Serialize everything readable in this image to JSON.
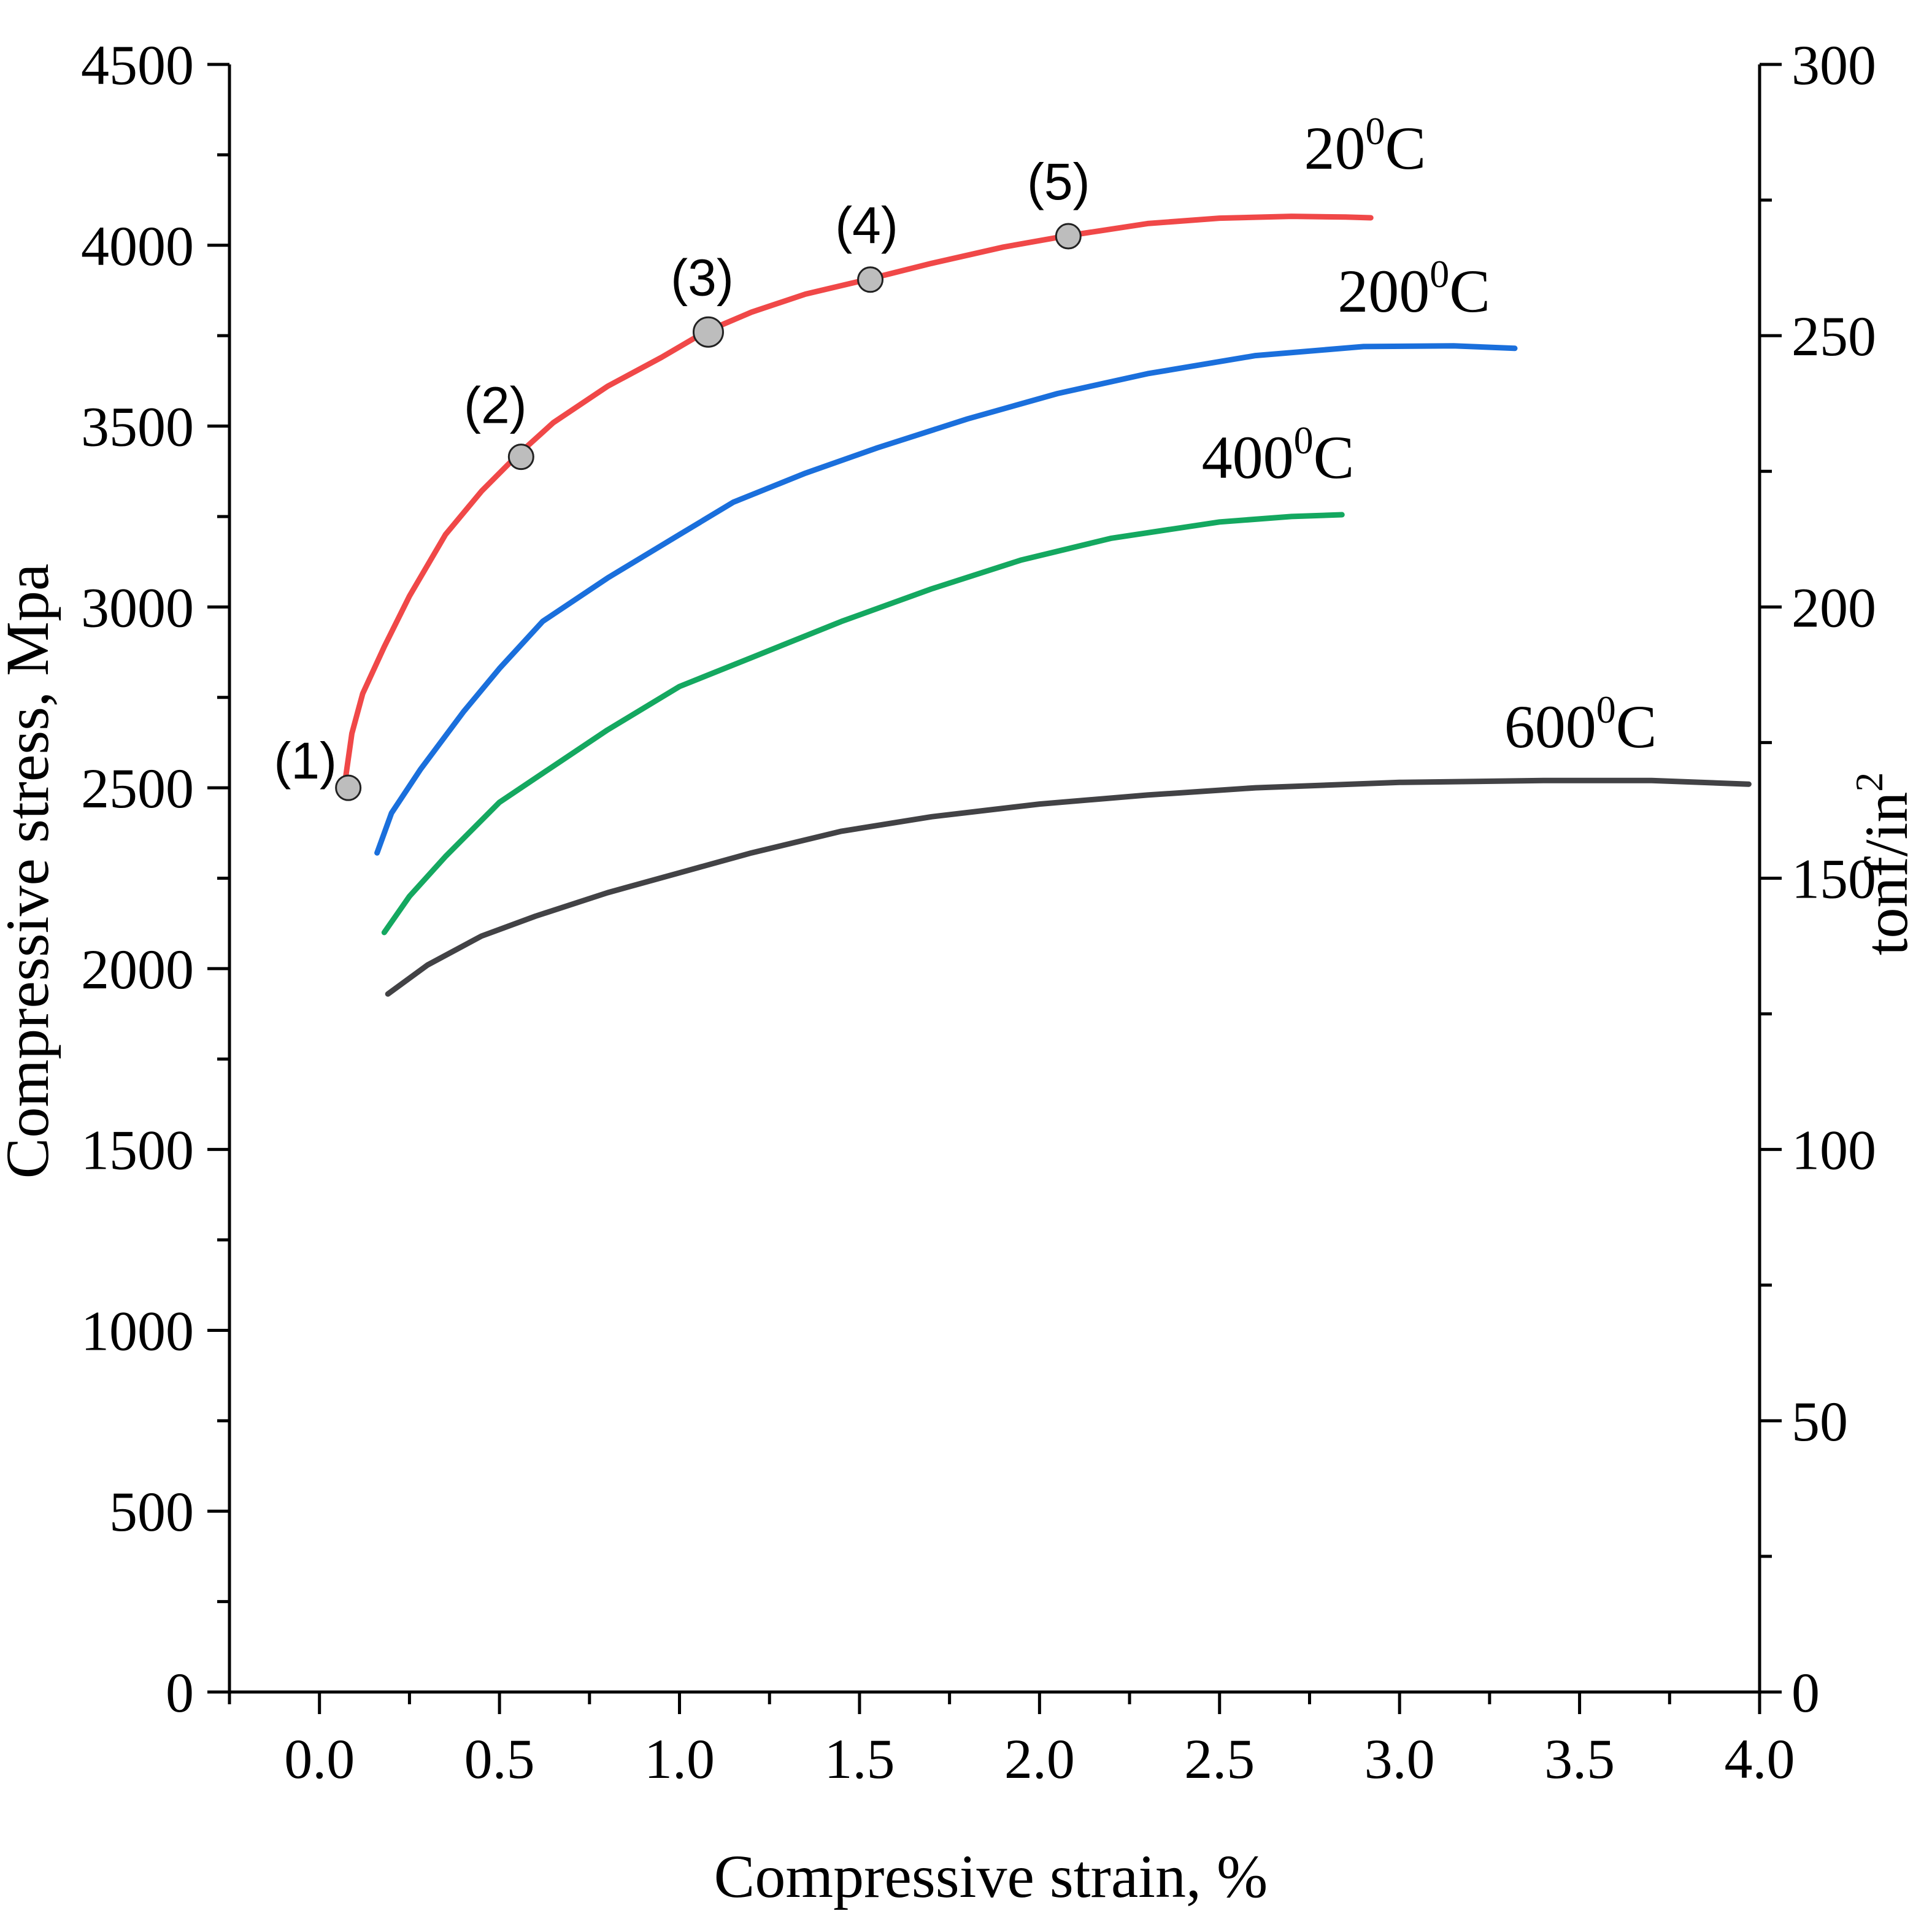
{
  "chart_data": {
    "type": "line",
    "xlabel": "Compressive strain, %",
    "ylabel": "Compressive stress, Mpa",
    "y2label": "tonf/in",
    "y2label_sup": "2",
    "xlim": [
      -0.25,
      4.0
    ],
    "ylim": [
      0,
      4500
    ],
    "y2lim": [
      0,
      300
    ],
    "x_ticks": [
      0.0,
      0.5,
      1.0,
      1.5,
      2.0,
      2.5,
      3.0,
      3.5,
      4.0
    ],
    "x_tick_labels": [
      "0.0",
      "0.5",
      "1.0",
      "1.5",
      "2.0",
      "2.5",
      "3.0",
      "3.5",
      "4.0"
    ],
    "y_ticks": [
      0,
      500,
      1000,
      1500,
      2000,
      2500,
      3000,
      3500,
      4000,
      4500
    ],
    "y_tick_labels": [
      "0",
      "500",
      "1000",
      "1500",
      "2000",
      "2500",
      "3000",
      "3500",
      "4000",
      "4500"
    ],
    "y2_ticks": [
      0,
      50,
      100,
      150,
      200,
      250,
      300
    ],
    "y2_tick_labels": [
      "0",
      "50",
      "100",
      "150",
      "200",
      "250",
      "300"
    ],
    "grid": false,
    "series": [
      {
        "name": "20°C",
        "label_base": "20",
        "label_sup": "0",
        "label_unit": "C",
        "color": "#f04848",
        "x": [
          0.07,
          0.09,
          0.12,
          0.18,
          0.25,
          0.35,
          0.45,
          0.55,
          0.65,
          0.8,
          0.95,
          1.07,
          1.2,
          1.35,
          1.52,
          1.7,
          1.9,
          2.07,
          2.3,
          2.5,
          2.7,
          2.85,
          2.92
        ],
        "values": [
          2510,
          2650,
          2760,
          2890,
          3030,
          3200,
          3320,
          3420,
          3510,
          3610,
          3690,
          3760,
          3815,
          3865,
          3905,
          3950,
          3995,
          4025,
          4060,
          4075,
          4080,
          4078,
          4076
        ]
      },
      {
        "name": "200°C",
        "label_base": "200",
        "label_sup": "0",
        "label_unit": "C",
        "color": "#1a6fdc",
        "x": [
          0.16,
          0.2,
          0.28,
          0.4,
          0.5,
          0.62,
          0.8,
          1.0,
          1.15,
          1.35,
          1.55,
          1.8,
          2.05,
          2.3,
          2.6,
          2.9,
          3.15,
          3.32
        ],
        "values": [
          2320,
          2430,
          2550,
          2710,
          2830,
          2960,
          3080,
          3200,
          3290,
          3370,
          3440,
          3520,
          3590,
          3645,
          3695,
          3720,
          3722,
          3715
        ]
      },
      {
        "name": "400°C",
        "label_base": "400",
        "label_sup": "0",
        "label_unit": "C",
        "color": "#14a860",
        "x": [
          0.18,
          0.25,
          0.35,
          0.5,
          0.65,
          0.8,
          1.0,
          1.2,
          1.45,
          1.7,
          1.95,
          2.2,
          2.5,
          2.7,
          2.84
        ],
        "values": [
          2100,
          2200,
          2310,
          2460,
          2560,
          2660,
          2780,
          2860,
          2960,
          3050,
          3130,
          3190,
          3235,
          3250,
          3255
        ]
      },
      {
        "name": "600°C",
        "label_base": "600",
        "label_sup": "0",
        "label_unit": "C",
        "color": "#424245",
        "x": [
          0.19,
          0.3,
          0.45,
          0.6,
          0.8,
          1.0,
          1.2,
          1.45,
          1.7,
          2.0,
          2.3,
          2.6,
          3.0,
          3.4,
          3.7,
          3.97
        ],
        "values": [
          1930,
          2010,
          2090,
          2145,
          2210,
          2265,
          2320,
          2380,
          2420,
          2455,
          2480,
          2500,
          2515,
          2520,
          2520,
          2510
        ]
      }
    ],
    "markers": [
      {
        "label": "(1)",
        "x": 0.08,
        "y": 2500
      },
      {
        "label": "(2)",
        "x": 0.56,
        "y": 3415
      },
      {
        "label": "(3)",
        "x": 1.08,
        "y": 3760
      },
      {
        "label": "(4)",
        "x": 1.53,
        "y": 3905
      },
      {
        "label": "(5)",
        "x": 2.08,
        "y": 4025
      }
    ],
    "marker_color": "#bdbdbd"
  }
}
